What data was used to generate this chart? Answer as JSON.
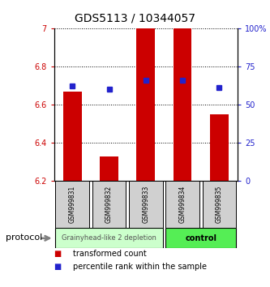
{
  "title": "GDS5113 / 10344057",
  "samples": [
    "GSM999831",
    "GSM999832",
    "GSM999833",
    "GSM999834",
    "GSM999835"
  ],
  "bar_base": 6.2,
  "bar_tops": [
    6.67,
    6.33,
    7.0,
    7.0,
    6.55
  ],
  "percentile_values": [
    6.7,
    6.68,
    6.73,
    6.73,
    6.69
  ],
  "ylim_left": [
    6.2,
    7.0
  ],
  "ylim_right": [
    0,
    100
  ],
  "yticks_left": [
    6.2,
    6.4,
    6.6,
    6.8,
    7.0
  ],
  "yticks_right": [
    0,
    25,
    50,
    75,
    100
  ],
  "ytick_labels_left": [
    "6.2",
    "6.4",
    "6.6",
    "6.8",
    "7"
  ],
  "ytick_labels_right": [
    "0",
    "25",
    "50",
    "75",
    "100%"
  ],
  "bar_color": "#cc0000",
  "marker_color": "#2222cc",
  "group1_indices": [
    0,
    1,
    2
  ],
  "group2_indices": [
    3,
    4
  ],
  "group1_label": "Grainyhead-like 2 depletion",
  "group2_label": "control",
  "group1_color": "#ccffcc",
  "group2_color": "#55ee55",
  "protocol_label": "protocol",
  "legend_bar_label": "transformed count",
  "legend_marker_label": "percentile rank within the sample",
  "bar_width": 0.5,
  "title_fontsize": 10,
  "axis_fontsize": 7,
  "sample_fontsize": 5.5,
  "legend_fontsize": 7,
  "group_label1_fontsize": 6,
  "group_label2_fontsize": 7
}
